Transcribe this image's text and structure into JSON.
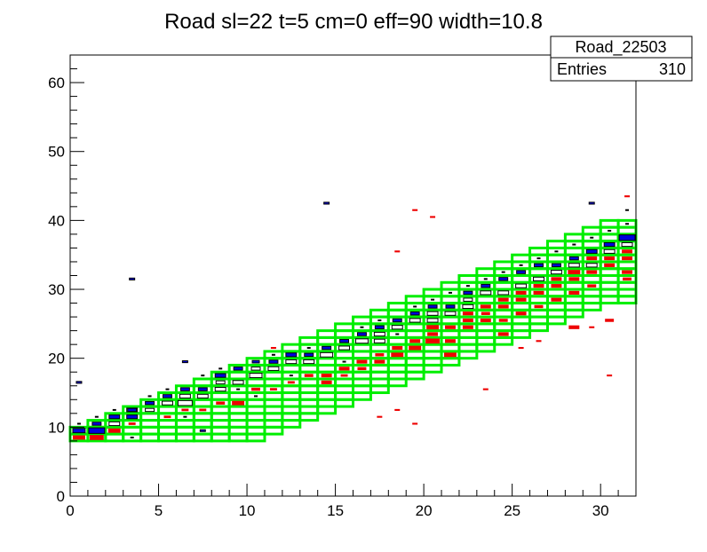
{
  "chart_data": {
    "type": "heatmap",
    "title": "Road sl=22 t=5 cm=0 eff=90 width=10.8",
    "xlabel": "",
    "ylabel": "",
    "xlim": [
      0,
      32
    ],
    "ylim": [
      0,
      64
    ],
    "x_ticks": [
      0,
      5,
      10,
      15,
      20,
      25,
      30
    ],
    "y_ticks": [
      0,
      10,
      20,
      30,
      40,
      50,
      60
    ],
    "grid": false,
    "stats_box": {
      "name": "Road_22503",
      "entries_label": "Entries",
      "entries_value": "310",
      "placement": "top-right"
    },
    "colors": {
      "road_cells": "#00ee00",
      "hist_blue": "#0000dd",
      "hist_red": "#ee0000",
      "hist_box": "#000000"
    },
    "road_band": {
      "description_free": true,
      "columns": [
        {
          "x": 0,
          "y_low": 8,
          "y_high": 10
        },
        {
          "x": 1,
          "y_low": 8,
          "y_high": 11
        },
        {
          "x": 2,
          "y_low": 8,
          "y_high": 12
        },
        {
          "x": 3,
          "y_low": 8,
          "y_high": 13
        },
        {
          "x": 4,
          "y_low": 8,
          "y_high": 14
        },
        {
          "x": 5,
          "y_low": 8,
          "y_high": 15
        },
        {
          "x": 6,
          "y_low": 8,
          "y_high": 16
        },
        {
          "x": 7,
          "y_low": 8,
          "y_high": 17
        },
        {
          "x": 8,
          "y_low": 8,
          "y_high": 18
        },
        {
          "x": 9,
          "y_low": 8,
          "y_high": 19
        },
        {
          "x": 10,
          "y_low": 8,
          "y_high": 20
        },
        {
          "x": 11,
          "y_low": 9,
          "y_high": 21
        },
        {
          "x": 12,
          "y_low": 10,
          "y_high": 22
        },
        {
          "x": 13,
          "y_low": 11,
          "y_high": 23
        },
        {
          "x": 14,
          "y_low": 12,
          "y_high": 24
        },
        {
          "x": 15,
          "y_low": 13,
          "y_high": 25
        },
        {
          "x": 16,
          "y_low": 14,
          "y_high": 26
        },
        {
          "x": 17,
          "y_low": 15,
          "y_high": 27
        },
        {
          "x": 18,
          "y_low": 16,
          "y_high": 28
        },
        {
          "x": 19,
          "y_low": 17,
          "y_high": 29
        },
        {
          "x": 20,
          "y_low": 18,
          "y_high": 30
        },
        {
          "x": 21,
          "y_low": 19,
          "y_high": 31
        },
        {
          "x": 22,
          "y_low": 20,
          "y_high": 32
        },
        {
          "x": 23,
          "y_low": 21,
          "y_high": 33
        },
        {
          "x": 24,
          "y_low": 22,
          "y_high": 34
        },
        {
          "x": 25,
          "y_low": 23,
          "y_high": 35
        },
        {
          "x": 26,
          "y_low": 24,
          "y_high": 36
        },
        {
          "x": 27,
          "y_low": 25,
          "y_high": 37
        },
        {
          "x": 28,
          "y_low": 26,
          "y_high": 38
        },
        {
          "x": 29,
          "y_low": 27,
          "y_high": 39
        },
        {
          "x": 30,
          "y_low": 28,
          "y_high": 40
        },
        {
          "x": 31,
          "y_low": 28,
          "y_high": 40
        }
      ]
    },
    "blue_cells": [
      {
        "x": 0,
        "y": 9,
        "w": 0.7
      },
      {
        "x": 1,
        "y": 9,
        "w": 0.9
      },
      {
        "x": 1,
        "y": 10,
        "w": 0.5
      },
      {
        "x": 2,
        "y": 11,
        "w": 0.6
      },
      {
        "x": 3,
        "y": 11,
        "w": 0.6
      },
      {
        "x": 3,
        "y": 12,
        "w": 0.5
      },
      {
        "x": 4,
        "y": 13,
        "w": 0.5
      },
      {
        "x": 5,
        "y": 14,
        "w": 0.5
      },
      {
        "x": 6,
        "y": 15,
        "w": 0.5
      },
      {
        "x": 7,
        "y": 15,
        "w": 0.5
      },
      {
        "x": 8,
        "y": 17,
        "w": 0.6
      },
      {
        "x": 9,
        "y": 18,
        "w": 0.5
      },
      {
        "x": 10,
        "y": 19,
        "w": 0.4
      },
      {
        "x": 11,
        "y": 19,
        "w": 0.5
      },
      {
        "x": 12,
        "y": 20,
        "w": 0.6
      },
      {
        "x": 13,
        "y": 20,
        "w": 0.5
      },
      {
        "x": 14,
        "y": 21,
        "w": 0.5
      },
      {
        "x": 15,
        "y": 22,
        "w": 0.5
      },
      {
        "x": 16,
        "y": 23,
        "w": 0.5
      },
      {
        "x": 17,
        "y": 24,
        "w": 0.5
      },
      {
        "x": 18,
        "y": 25,
        "w": 0.5
      },
      {
        "x": 19,
        "y": 26,
        "w": 0.5
      },
      {
        "x": 20,
        "y": 27,
        "w": 0.5
      },
      {
        "x": 21,
        "y": 27,
        "w": 0.5
      },
      {
        "x": 22,
        "y": 29,
        "w": 0.5
      },
      {
        "x": 23,
        "y": 30,
        "w": 0.5
      },
      {
        "x": 24,
        "y": 31,
        "w": 0.5
      },
      {
        "x": 25,
        "y": 32,
        "w": 0.5
      },
      {
        "x": 26,
        "y": 33,
        "w": 0.5
      },
      {
        "x": 27,
        "y": 33,
        "w": 0.5
      },
      {
        "x": 28,
        "y": 34,
        "w": 0.5
      },
      {
        "x": 29,
        "y": 35,
        "w": 0.6
      },
      {
        "x": 30,
        "y": 36,
        "w": 0.6
      },
      {
        "x": 31,
        "y": 37,
        "w": 0.9
      },
      {
        "x": 0,
        "y": 16,
        "w": 0.3
      },
      {
        "x": 3,
        "y": 31,
        "w": 0.3
      },
      {
        "x": 6,
        "y": 19,
        "w": 0.3
      },
      {
        "x": 14,
        "y": 42,
        "w": 0.3
      },
      {
        "x": 29,
        "y": 42,
        "w": 0.3
      },
      {
        "x": 7,
        "y": 9,
        "w": 0.3
      }
    ],
    "white_cells": [
      {
        "x": 2,
        "y": 10,
        "w": 0.6
      },
      {
        "x": 3,
        "y": 12,
        "w": 0.6
      },
      {
        "x": 4,
        "y": 12,
        "w": 0.5
      },
      {
        "x": 5,
        "y": 13,
        "w": 0.6
      },
      {
        "x": 6,
        "y": 13,
        "w": 0.8
      },
      {
        "x": 6,
        "y": 14,
        "w": 0.6
      },
      {
        "x": 7,
        "y": 14,
        "w": 0.6
      },
      {
        "x": 8,
        "y": 15,
        "w": 0.6
      },
      {
        "x": 8,
        "y": 16,
        "w": 0.5
      },
      {
        "x": 9,
        "y": 16,
        "w": 0.6
      },
      {
        "x": 10,
        "y": 17,
        "w": 0.7
      },
      {
        "x": 10,
        "y": 18,
        "w": 0.5
      },
      {
        "x": 11,
        "y": 18,
        "w": 0.6
      },
      {
        "x": 12,
        "y": 19,
        "w": 0.6
      },
      {
        "x": 13,
        "y": 19,
        "w": 0.6
      },
      {
        "x": 14,
        "y": 20,
        "w": 0.7
      },
      {
        "x": 15,
        "y": 21,
        "w": 0.6
      },
      {
        "x": 16,
        "y": 22,
        "w": 0.7
      },
      {
        "x": 17,
        "y": 22,
        "w": 0.6
      },
      {
        "x": 17,
        "y": 23,
        "w": 0.6
      },
      {
        "x": 18,
        "y": 24,
        "w": 0.6
      },
      {
        "x": 19,
        "y": 25,
        "w": 0.6
      },
      {
        "x": 20,
        "y": 25,
        "w": 0.6
      },
      {
        "x": 20,
        "y": 26,
        "w": 0.6
      },
      {
        "x": 21,
        "y": 26,
        "w": 0.6
      },
      {
        "x": 22,
        "y": 27,
        "w": 0.6
      },
      {
        "x": 22,
        "y": 28,
        "w": 0.5
      },
      {
        "x": 23,
        "y": 29,
        "w": 0.6
      },
      {
        "x": 24,
        "y": 29,
        "w": 0.6
      },
      {
        "x": 25,
        "y": 30,
        "w": 0.6
      },
      {
        "x": 26,
        "y": 31,
        "w": 0.6
      },
      {
        "x": 27,
        "y": 32,
        "w": 0.6
      },
      {
        "x": 28,
        "y": 33,
        "w": 0.6
      },
      {
        "x": 29,
        "y": 33,
        "w": 0.6
      },
      {
        "x": 30,
        "y": 35,
        "w": 0.6
      },
      {
        "x": 31,
        "y": 36,
        "w": 0.6
      }
    ],
    "red_cells": [
      {
        "x": 0,
        "y": 8,
        "w": 0.7
      },
      {
        "x": 1,
        "y": 8,
        "w": 0.8
      },
      {
        "x": 2,
        "y": 9,
        "w": 0.7
      },
      {
        "x": 3,
        "y": 10,
        "w": 0.4
      },
      {
        "x": 5,
        "y": 11,
        "w": 0.4
      },
      {
        "x": 6,
        "y": 12,
        "w": 0.4
      },
      {
        "x": 7,
        "y": 12,
        "w": 0.4
      },
      {
        "x": 8,
        "y": 13,
        "w": 0.5
      },
      {
        "x": 9,
        "y": 13,
        "w": 0.7
      },
      {
        "x": 10,
        "y": 15,
        "w": 0.5
      },
      {
        "x": 11,
        "y": 15,
        "w": 0.4
      },
      {
        "x": 12,
        "y": 16,
        "w": 0.4
      },
      {
        "x": 13,
        "y": 17,
        "w": 0.5
      },
      {
        "x": 14,
        "y": 16,
        "w": 0.6
      },
      {
        "x": 14,
        "y": 17,
        "w": 0.6
      },
      {
        "x": 15,
        "y": 18,
        "w": 0.6
      },
      {
        "x": 15,
        "y": 17,
        "w": 0.4
      },
      {
        "x": 16,
        "y": 18,
        "w": 0.5
      },
      {
        "x": 16,
        "y": 19,
        "w": 0.6
      },
      {
        "x": 17,
        "y": 19,
        "w": 0.6
      },
      {
        "x": 17,
        "y": 20,
        "w": 0.5
      },
      {
        "x": 18,
        "y": 20,
        "w": 0.7
      },
      {
        "x": 18,
        "y": 21,
        "w": 0.6
      },
      {
        "x": 19,
        "y": 21,
        "w": 0.7
      },
      {
        "x": 19,
        "y": 22,
        "w": 0.6
      },
      {
        "x": 20,
        "y": 22,
        "w": 0.8
      },
      {
        "x": 20,
        "y": 23,
        "w": 0.6
      },
      {
        "x": 20,
        "y": 24,
        "w": 0.7
      },
      {
        "x": 21,
        "y": 20,
        "w": 0.7
      },
      {
        "x": 21,
        "y": 22,
        "w": 0.6
      },
      {
        "x": 21,
        "y": 24,
        "w": 0.6
      },
      {
        "x": 22,
        "y": 24,
        "w": 0.6
      },
      {
        "x": 22,
        "y": 25,
        "w": 0.6
      },
      {
        "x": 22,
        "y": 26,
        "w": 0.6
      },
      {
        "x": 23,
        "y": 25,
        "w": 0.6
      },
      {
        "x": 23,
        "y": 26,
        "w": 0.5
      },
      {
        "x": 23,
        "y": 27,
        "w": 0.6
      },
      {
        "x": 24,
        "y": 23,
        "w": 0.6
      },
      {
        "x": 24,
        "y": 25,
        "w": 0.5
      },
      {
        "x": 24,
        "y": 27,
        "w": 0.6
      },
      {
        "x": 24,
        "y": 28,
        "w": 0.6
      },
      {
        "x": 25,
        "y": 26,
        "w": 0.6
      },
      {
        "x": 25,
        "y": 28,
        "w": 0.6
      },
      {
        "x": 25,
        "y": 29,
        "w": 0.6
      },
      {
        "x": 26,
        "y": 27,
        "w": 0.5
      },
      {
        "x": 26,
        "y": 29,
        "w": 0.6
      },
      {
        "x": 26,
        "y": 30,
        "w": 0.6
      },
      {
        "x": 27,
        "y": 28,
        "w": 0.6
      },
      {
        "x": 27,
        "y": 30,
        "w": 0.6
      },
      {
        "x": 27,
        "y": 31,
        "w": 0.6
      },
      {
        "x": 28,
        "y": 24,
        "w": 0.6
      },
      {
        "x": 28,
        "y": 31,
        "w": 0.6
      },
      {
        "x": 28,
        "y": 32,
        "w": 0.7
      },
      {
        "x": 28,
        "y": 29,
        "w": 0.6
      },
      {
        "x": 29,
        "y": 30,
        "w": 0.5
      },
      {
        "x": 29,
        "y": 32,
        "w": 0.6
      },
      {
        "x": 29,
        "y": 34,
        "w": 0.6
      },
      {
        "x": 30,
        "y": 33,
        "w": 0.6
      },
      {
        "x": 30,
        "y": 34,
        "w": 0.6
      },
      {
        "x": 30,
        "y": 25,
        "w": 0.5
      },
      {
        "x": 31,
        "y": 32,
        "w": 0.6
      },
      {
        "x": 31,
        "y": 34,
        "w": 0.6
      },
      {
        "x": 31,
        "y": 35,
        "w": 0.6
      },
      {
        "x": 31,
        "y": 31,
        "w": 0.5
      },
      {
        "x": 11,
        "y": 21,
        "w": 0.3
      },
      {
        "x": 17,
        "y": 11,
        "w": 0.3
      },
      {
        "x": 18,
        "y": 12,
        "w": 0.3
      },
      {
        "x": 18,
        "y": 35,
        "w": 0.3
      },
      {
        "x": 19,
        "y": 10,
        "w": 0.3
      },
      {
        "x": 19,
        "y": 41,
        "w": 0.3
      },
      {
        "x": 20,
        "y": 40,
        "w": 0.3
      },
      {
        "x": 23,
        "y": 15,
        "w": 0.3
      },
      {
        "x": 25,
        "y": 21,
        "w": 0.3
      },
      {
        "x": 26,
        "y": 22,
        "w": 0.3
      },
      {
        "x": 30,
        "y": 17,
        "w": 0.3
      },
      {
        "x": 31,
        "y": 43,
        "w": 0.3
      },
      {
        "x": 29,
        "y": 24,
        "w": 0.3
      }
    ],
    "black_ticks": [
      {
        "x": 0,
        "y": 10
      },
      {
        "x": 1,
        "y": 11
      },
      {
        "x": 2,
        "y": 12
      },
      {
        "x": 3,
        "y": 8
      },
      {
        "x": 4,
        "y": 14
      },
      {
        "x": 5,
        "y": 15
      },
      {
        "x": 7,
        "y": 17
      },
      {
        "x": 8,
        "y": 18
      },
      {
        "x": 9,
        "y": 15
      },
      {
        "x": 11,
        "y": 20
      },
      {
        "x": 12,
        "y": 17
      },
      {
        "x": 13,
        "y": 21
      },
      {
        "x": 15,
        "y": 19
      },
      {
        "x": 16,
        "y": 24
      },
      {
        "x": 17,
        "y": 25
      },
      {
        "x": 18,
        "y": 23
      },
      {
        "x": 19,
        "y": 27
      },
      {
        "x": 20,
        "y": 28
      },
      {
        "x": 21,
        "y": 29
      },
      {
        "x": 22,
        "y": 30
      },
      {
        "x": 23,
        "y": 31
      },
      {
        "x": 24,
        "y": 32
      },
      {
        "x": 25,
        "y": 33
      },
      {
        "x": 26,
        "y": 34
      },
      {
        "x": 27,
        "y": 35
      },
      {
        "x": 28,
        "y": 36
      },
      {
        "x": 29,
        "y": 37
      },
      {
        "x": 30,
        "y": 38
      },
      {
        "x": 31,
        "y": 39
      },
      {
        "x": 31,
        "y": 41
      },
      {
        "x": 6,
        "y": 11
      },
      {
        "x": 10,
        "y": 14
      }
    ]
  }
}
